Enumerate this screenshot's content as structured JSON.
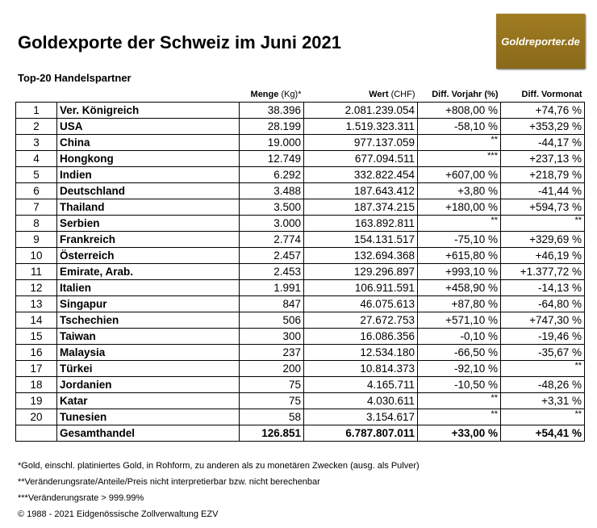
{
  "title": "Goldexporte der Schweiz im Juni 2021",
  "subtitle": "Top-20 Handelspartner",
  "logo": "Goldreporter.de",
  "headers": {
    "menge": "Menge",
    "menge_unit": "(Kg)*",
    "wert": "Wert",
    "wert_unit": "(CHF)",
    "vorjahr": "Diff. Vorjahr (%)",
    "vormonat": "Diff. Vormonat"
  },
  "rows": [
    [
      "1",
      "Ver. Königreich",
      "38.396",
      "2.081.239.054",
      "+808,00 %",
      "+74,76 %"
    ],
    [
      "2",
      "USA",
      "28.199",
      "1.519.323.311",
      "-58,10 %",
      "+353,29 %"
    ],
    [
      "3",
      "China",
      "19.000",
      "977.137.059",
      "**",
      "-44,17 %"
    ],
    [
      "4",
      "Hongkong",
      "12.749",
      "677.094.511",
      "***",
      "+237,13 %"
    ],
    [
      "5",
      "Indien",
      "6.292",
      "332.822.454",
      "+607,00 %",
      "+218,79 %"
    ],
    [
      "6",
      "Deutschland",
      "3.488",
      "187.643.412",
      "+3,80 %",
      "-41,44 %"
    ],
    [
      "7",
      "Thailand",
      "3.500",
      "187.374.215",
      "+180,00 %",
      "+594,73 %"
    ],
    [
      "8",
      "Serbien",
      "3.000",
      "163.892.811",
      "**",
      "**"
    ],
    [
      "9",
      "Frankreich",
      "2.774",
      "154.131.517",
      "-75,10 %",
      "+329,69 %"
    ],
    [
      "10",
      "Österreich",
      "2.457",
      "132.694.368",
      "+615,80 %",
      "+46,19 %"
    ],
    [
      "11",
      "Emirate, Arab.",
      "2.453",
      "129.296.897",
      "+993,10 %",
      "+1.377,72 %"
    ],
    [
      "12",
      "Italien",
      "1.991",
      "106.911.591",
      "+458,90 %",
      "-14,13 %"
    ],
    [
      "13",
      "Singapur",
      "847",
      "46.075.613",
      "+87,80 %",
      "-64,80 %"
    ],
    [
      "14",
      "Tschechien",
      "506",
      "27.672.753",
      "+571,10 %",
      "+747,30 %"
    ],
    [
      "15",
      "Taiwan",
      "300",
      "16.086.356",
      "-0,10 %",
      "-19,46 %"
    ],
    [
      "16",
      "Malaysia",
      "237",
      "12.534.180",
      "-66,50 %",
      "-35,67 %"
    ],
    [
      "17",
      "Türkei",
      "200",
      "10.814.373",
      "-92,10 %",
      "**"
    ],
    [
      "18",
      "Jordanien",
      "75",
      "4.165.711",
      "-10,50 %",
      "-48,26 %"
    ],
    [
      "19",
      "Katar",
      "75",
      "4.030.611",
      "**",
      "+3,31 %"
    ],
    [
      "20",
      "Tunesien",
      "58",
      "3.154.617",
      "**",
      "**"
    ]
  ],
  "total": [
    "Gesamthandel",
    "126.851",
    "6.787.807.011",
    "+33,00 %",
    "+54,41 %"
  ],
  "footnotes": [
    "*Gold, einschl. platiniertes Gold, in Rohform, zu anderen als zu monetären Zwecken (ausg. als Pulver)",
    "**Veränderungsrate/Anteile/Preis nicht interpretierbar bzw. nicht berechenbar",
    "***Veränderungsrate > 999.99%",
    "© 1988 - 2021 Eidgenössische Zollverwaltung EZV"
  ]
}
